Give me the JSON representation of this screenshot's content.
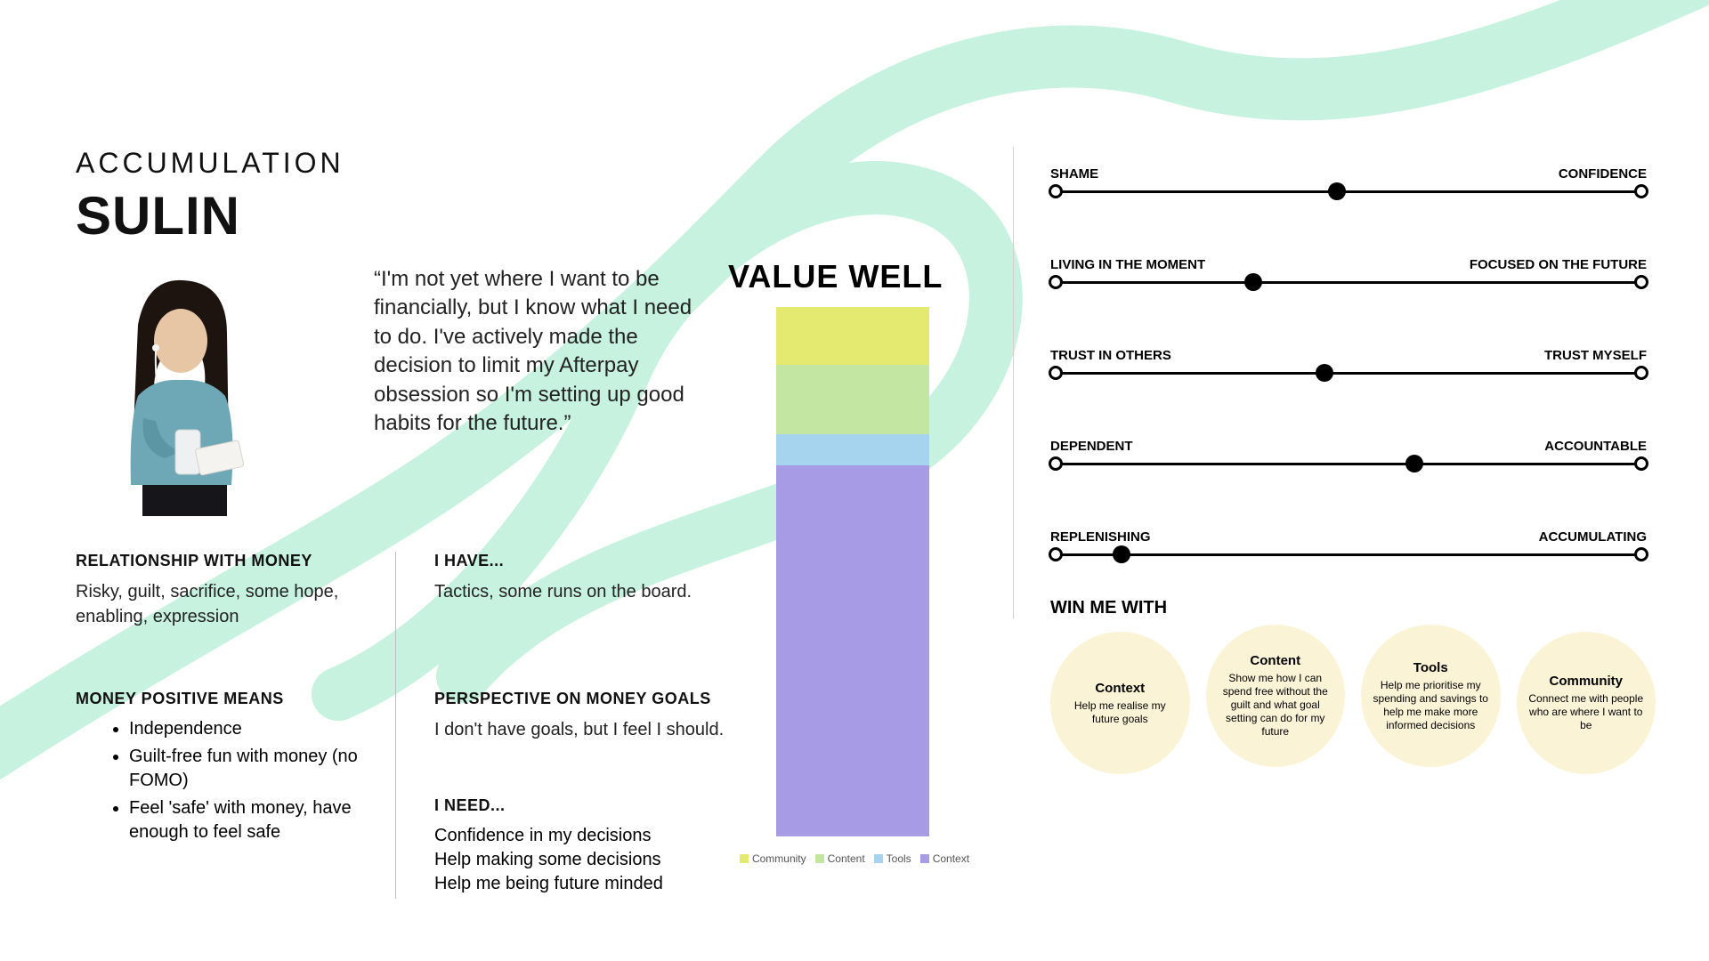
{
  "header": {
    "subtitle": "ACCUMULATION",
    "title": "SULIN"
  },
  "quote": "“I'm not yet where I want to be financially, but I know what I need to do. I've actively made the decision to limit my Afterpay obsession so I'm setting up good habits for the future.”",
  "left_column": {
    "relationship": {
      "heading": "RELATIONSHIP WITH MONEY",
      "body": "Risky, guilt, sacrifice, some hope, enabling, expression"
    },
    "money_positive_means": {
      "heading": "MONEY POSITIVE MEANS",
      "items": [
        "Independence",
        "Guilt-free fun with money (no FOMO)",
        "Feel 'safe' with money, have enough to feel safe"
      ]
    },
    "i_have": {
      "heading": "I HAVE...",
      "body": "Tactics, some runs on the board."
    },
    "perspective": {
      "heading": "PERSPECTIVE ON MONEY GOALS",
      "body": "I don't have goals, but I feel I should."
    },
    "i_need": {
      "heading": "I NEED...",
      "lines": [
        "Confidence in my decisions",
        "Help making some decisions",
        "Help me being future minded"
      ]
    }
  },
  "value_well": {
    "title": "VALUE WELL",
    "type": "stacked-bar",
    "segments": [
      {
        "name": "Community",
        "value": 11,
        "color": "#e4e96f"
      },
      {
        "name": "Content",
        "value": 13,
        "color": "#c3e6a3"
      },
      {
        "name": "Tools",
        "value": 6,
        "color": "#a6d4ef"
      },
      {
        "name": "Context",
        "value": 70,
        "color": "#a89be5"
      }
    ],
    "legend_labels": [
      "Community",
      "Content",
      "Tools",
      "Context"
    ],
    "background_color": "#ffffff",
    "title_fontsize": 36,
    "title_fontweight": 900
  },
  "sliders": [
    {
      "left": "SHAME",
      "right": "CONFIDENCE",
      "value": 0.48
    },
    {
      "left": "LIVING IN THE MOMENT",
      "right": "FOCUSED ON THE FUTURE",
      "value": 0.34
    },
    {
      "left": "TRUST IN OTHERS",
      "right": "TRUST MYSELF",
      "value": 0.46
    },
    {
      "left": "DEPENDENT",
      "right": "ACCOUNTABLE",
      "value": 0.61
    },
    {
      "left": "REPLENISHING",
      "right": "ACCUMULATING",
      "value": 0.12
    }
  ],
  "win_me_with": {
    "heading": "WIN ME WITH",
    "items": [
      {
        "title": "Context",
        "desc": "Help me realise my future goals"
      },
      {
        "title": "Content",
        "desc": "Show me how I can spend free without the guilt and what goal setting can do for my future"
      },
      {
        "title": "Tools",
        "desc": "Help me prioritise my spending and savings to help me make more informed decisions"
      },
      {
        "title": "Community",
        "desc": "Connect me with people who are where I want to be"
      }
    ],
    "circle_color": "#fbf3d6"
  },
  "swoosh_color": "#c6f2df"
}
